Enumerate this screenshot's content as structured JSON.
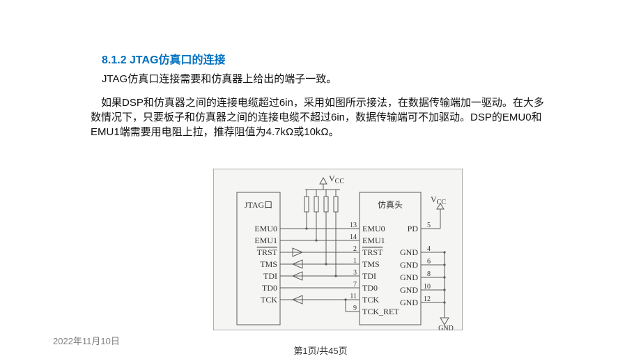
{
  "heading": "8.1.2 JTAG仿真口的连接",
  "subline": "JTAG仿真口连接需要和仿真器上给出的端子一致。",
  "paragraph": "如果DSP和仿真器之间的连接电缆超过6in，采用如图所示接法，在数据传输端加一驱动。在大多数情况下，只要板子和仿真器之间的连接电缆不超过6in，数据传输端可不加驱动。DSP的EMU0和EMU1端需要用电阻上拉，推荐阻值为4.7kΩ或10kΩ。",
  "date": "2022年11月10日",
  "page_label": "第1页/共45页",
  "diagram": {
    "background": "#f5f5f3",
    "border_color": "#666666",
    "stroke_color": "#5a5a5a",
    "text_color": "#444444",
    "left_box_label": "JTAG口",
    "right_box_label": "仿真头",
    "vcc_label": "V",
    "vcc_sub": "CC",
    "gnd_label": "GND",
    "left_signals": [
      {
        "name": "EMU0",
        "overline": false
      },
      {
        "name": "EMU1",
        "overline": false
      },
      {
        "name": "TRST",
        "overline": true
      },
      {
        "name": "TMS",
        "overline": false
      },
      {
        "name": "TDI",
        "overline": false
      },
      {
        "name": "TD0",
        "overline": false
      },
      {
        "name": "TCK",
        "overline": false
      }
    ],
    "right_left_signals": [
      {
        "name": "EMU0",
        "pin": "13",
        "overline": false
      },
      {
        "name": "EMU1",
        "pin": "14",
        "overline": false
      },
      {
        "name": "TRST",
        "pin": "2",
        "overline": true
      },
      {
        "name": "TMS",
        "pin": "1",
        "overline": false
      },
      {
        "name": "TDI",
        "pin": "3",
        "overline": false
      },
      {
        "name": "TD0",
        "pin": "7",
        "overline": false
      },
      {
        "name": "TCK",
        "pin": "11",
        "overline": false
      },
      {
        "name": "TCK_RET",
        "pin": "9",
        "overline": false
      }
    ],
    "right_right_signals": [
      {
        "name": "PD",
        "pin": "5"
      },
      {
        "name": "GND",
        "pin": "4"
      },
      {
        "name": "GND",
        "pin": "6"
      },
      {
        "name": "GND",
        "pin": "8"
      },
      {
        "name": "GND",
        "pin": "10"
      },
      {
        "name": "GND",
        "pin": "12"
      }
    ]
  }
}
